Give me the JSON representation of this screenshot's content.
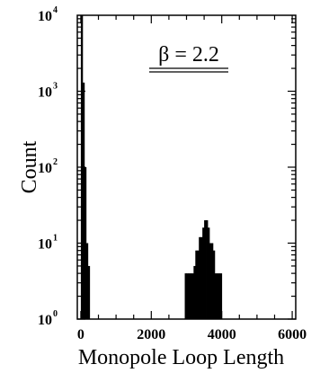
{
  "chart_data": {
    "type": "bar",
    "title": "",
    "xlabel": "Monopole Loop Length",
    "ylabel": "Count",
    "annotation": "β = 2.2",
    "y_scale": "log",
    "xlim": [
      -100,
      6100
    ],
    "ylim": [
      1,
      10000
    ],
    "x_ticks": [
      {
        "value": 0,
        "label": "0"
      },
      {
        "value": 2000,
        "label": "2000"
      },
      {
        "value": 4000,
        "label": "4000"
      },
      {
        "value": 6000,
        "label": "6000"
      }
    ],
    "y_ticks": [
      {
        "value": 1,
        "base": "10",
        "exp": "0"
      },
      {
        "value": 10,
        "base": "10",
        "exp": "1"
      },
      {
        "value": 100,
        "base": "10",
        "exp": "2"
      },
      {
        "value": 1000,
        "base": "10",
        "exp": "3"
      },
      {
        "value": 10000,
        "base": "10",
        "exp": "4"
      }
    ],
    "bin_width": 50,
    "bins": [
      {
        "x": 0,
        "count": 10000
      },
      {
        "x": 50,
        "count": 1300
      },
      {
        "x": 100,
        "count": 100
      },
      {
        "x": 150,
        "count": 10
      },
      {
        "x": 200,
        "count": 5
      },
      {
        "x": 250,
        "count": 1
      },
      {
        "x": 2950,
        "count": 4
      },
      {
        "x": 3000,
        "count": 4
      },
      {
        "x": 3050,
        "count": 4
      },
      {
        "x": 3100,
        "count": 4
      },
      {
        "x": 3150,
        "count": 4
      },
      {
        "x": 3200,
        "count": 5
      },
      {
        "x": 3250,
        "count": 8
      },
      {
        "x": 3300,
        "count": 8
      },
      {
        "x": 3350,
        "count": 12
      },
      {
        "x": 3400,
        "count": 12
      },
      {
        "x": 3450,
        "count": 16
      },
      {
        "x": 3500,
        "count": 20
      },
      {
        "x": 3550,
        "count": 20
      },
      {
        "x": 3600,
        "count": 16
      },
      {
        "x": 3650,
        "count": 10
      },
      {
        "x": 3700,
        "count": 10
      },
      {
        "x": 3750,
        "count": 8
      },
      {
        "x": 3800,
        "count": 4
      },
      {
        "x": 3850,
        "count": 4
      },
      {
        "x": 3900,
        "count": 4
      },
      {
        "x": 3950,
        "count": 4
      }
    ]
  }
}
